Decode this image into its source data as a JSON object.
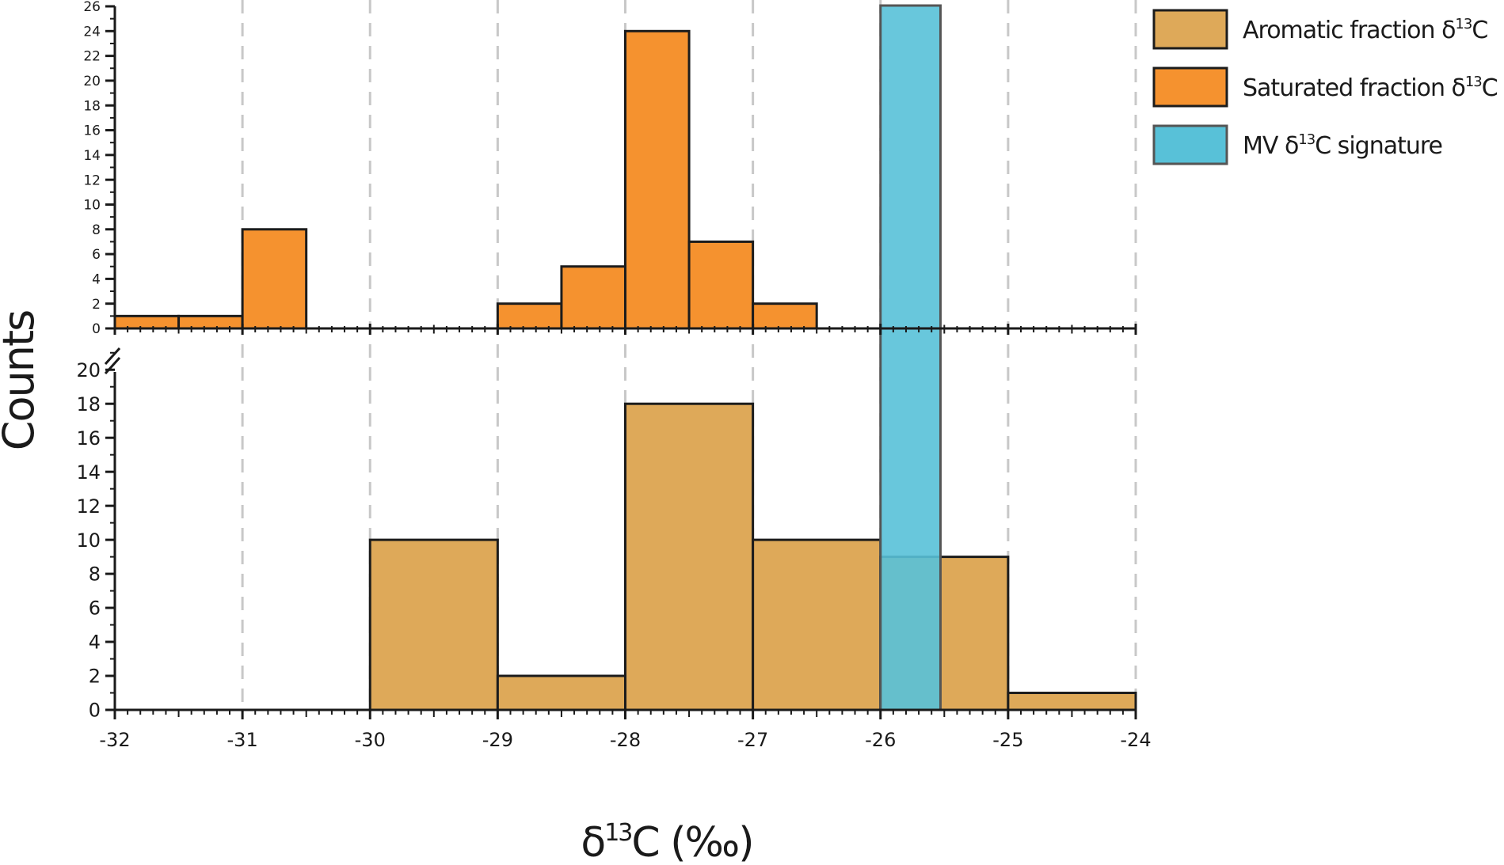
{
  "chart_data": {
    "type": "bar",
    "xlabel": "δ¹³C (‰)",
    "ylabel": "Counts",
    "xlim": [
      -32,
      -24
    ],
    "x_ticks": [
      -32,
      -31,
      -30,
      -29,
      -28,
      -27,
      -26,
      -25,
      -24
    ],
    "grid": "vertical dashed lines at integer x",
    "legend_position": "top-right",
    "panels": [
      {
        "id": "upper",
        "ylim": [
          0,
          26
        ],
        "y_ticks": [
          0,
          2,
          4,
          6,
          8,
          10,
          12,
          14,
          16,
          18,
          20,
          22,
          24,
          26
        ],
        "series": [
          {
            "name": "Saturated fraction δ13C",
            "color": "#F5922F",
            "bins": [
              {
                "x0": -32,
                "x1": -31.5,
                "count": 1
              },
              {
                "x0": -31.5,
                "x1": -31,
                "count": 1
              },
              {
                "x0": -31,
                "x1": -30.5,
                "count": 8
              },
              {
                "x0": -29,
                "x1": -28.5,
                "count": 2
              },
              {
                "x0": -28.5,
                "x1": -28,
                "count": 5
              },
              {
                "x0": -28,
                "x1": -27.5,
                "count": 24
              },
              {
                "x0": -27.5,
                "x1": -27,
                "count": 7
              },
              {
                "x0": -27,
                "x1": -26.5,
                "count": 2
              }
            ]
          }
        ]
      },
      {
        "id": "lower",
        "ylim": [
          0,
          21.5
        ],
        "y_ticks": [
          0,
          2,
          4,
          6,
          8,
          10,
          12,
          14,
          16,
          18,
          20
        ],
        "series": [
          {
            "name": "Aromatic fraction δ13C",
            "color": "#DEA959",
            "bins": [
              {
                "x0": -30,
                "x1": -29,
                "count": 10
              },
              {
                "x0": -29,
                "x1": -28,
                "count": 2
              },
              {
                "x0": -28,
                "x1": -27,
                "count": 18
              },
              {
                "x0": -27,
                "x1": -26,
                "count": 10
              },
              {
                "x0": -26,
                "x1": -25,
                "count": 9
              },
              {
                "x0": -25,
                "x1": -24,
                "count": 1
              }
            ]
          }
        ]
      }
    ],
    "overlay": {
      "name": "MV δ13C signature",
      "color": "#58C1D8",
      "x_range": [
        -26,
        -25.53
      ]
    },
    "legend": [
      {
        "pre": "Aromatic fraction δ",
        "sup": "13",
        "post": "C",
        "color": "#DEA959"
      },
      {
        "pre": "Saturated fraction δ",
        "sup": "13",
        "post": "C",
        "color": "#F5922F"
      },
      {
        "pre": "MV δ",
        "sup": "13",
        "post": "C signature",
        "color": "#58C1D8"
      }
    ],
    "xlabel_parts": {
      "pre": "δ",
      "sup": "13",
      "post": "C (‰)"
    }
  }
}
